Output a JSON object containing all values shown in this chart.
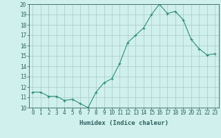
{
  "x": [
    0,
    1,
    2,
    3,
    4,
    5,
    6,
    7,
    8,
    9,
    10,
    11,
    12,
    13,
    14,
    15,
    16,
    17,
    18,
    19,
    20,
    21,
    22,
    23
  ],
  "y": [
    11.5,
    11.5,
    11.1,
    11.1,
    10.7,
    10.8,
    10.4,
    10.0,
    11.5,
    12.4,
    12.8,
    14.3,
    16.3,
    17.0,
    17.7,
    19.0,
    20.0,
    19.1,
    19.3,
    18.5,
    16.6,
    15.7,
    15.1,
    15.2
  ],
  "line_color": "#2e8b77",
  "marker": "+",
  "marker_size": 3,
  "bg_color": "#cff0ec",
  "grid_color": "#aac8c4",
  "axis_color": "#2e6060",
  "xlabel": "Humidex (Indice chaleur)",
  "xlim": [
    -0.5,
    23.5
  ],
  "ylim": [
    10,
    20
  ],
  "yticks": [
    10,
    11,
    12,
    13,
    14,
    15,
    16,
    17,
    18,
    19,
    20
  ],
  "xticks": [
    0,
    1,
    2,
    3,
    4,
    5,
    6,
    7,
    8,
    9,
    10,
    11,
    12,
    13,
    14,
    15,
    16,
    17,
    18,
    19,
    20,
    21,
    22,
    23
  ],
  "label_fontsize": 6.5,
  "tick_fontsize": 5.5
}
